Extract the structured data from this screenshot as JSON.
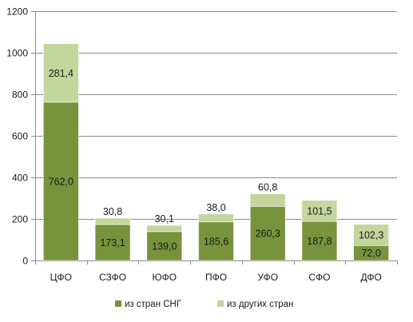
{
  "chart_data": {
    "type": "bar",
    "stacked": true,
    "title": "",
    "xlabel": "",
    "ylabel": "",
    "ylim": [
      0,
      1200
    ],
    "yticks": [
      "0",
      "200",
      "400",
      "600",
      "800",
      "1000",
      "1200"
    ],
    "ytick_values": [
      0,
      200,
      400,
      600,
      800,
      1000,
      1200
    ],
    "grid": true,
    "legend_position": "bottom",
    "categories": [
      "ЦФО",
      "СЗФО",
      "ЮФО",
      "ПФО",
      "УФО",
      "СФО",
      "ДФО"
    ],
    "series": [
      {
        "name": "из стран СНГ",
        "color": "#77933C",
        "values": [
          762.0,
          173.1,
          139.0,
          185.6,
          260.3,
          187.8,
          72.0
        ],
        "labels": [
          "762,0",
          "173,1",
          "139,0",
          "185,6",
          "260,3",
          "187,8",
          "72,0"
        ]
      },
      {
        "name": "из других стран",
        "color": "#C3D69B",
        "values": [
          281.4,
          30.8,
          30.1,
          38.0,
          60.8,
          101.5,
          102.3
        ],
        "labels": [
          "281,4",
          "30,8",
          "30,1",
          "38,0",
          "60,8",
          "101,5",
          "102,3"
        ]
      }
    ]
  }
}
